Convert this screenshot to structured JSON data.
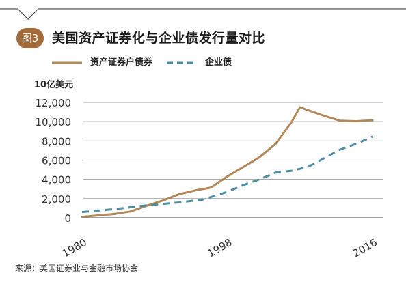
{
  "figure": {
    "badge": "图3",
    "title": "美国资产证券化与企业债发行量对比",
    "source": "来源：美国证券业与金融市场协会"
  },
  "colors": {
    "brown": "#b38858",
    "blue": "#4b8da2",
    "badge": "#a36a3a"
  },
  "chart_data": {
    "type": "line",
    "title": "美国资产证券化与企业债发行量对比",
    "ylabel": "10亿美元",
    "xlabel": "",
    "xlim": [
      1980,
      2016
    ],
    "ylim": [
      0,
      12000
    ],
    "yticks": [
      0,
      2000,
      4000,
      6000,
      8000,
      10000,
      12000
    ],
    "ytick_labels": [
      "0",
      "2,000",
      "4,000",
      "6,000",
      "8,000",
      "10,000",
      "12,000"
    ],
    "xticks": [
      1980,
      1998,
      2016
    ],
    "xtick_labels": [
      "1980",
      "1998",
      "2016"
    ],
    "grid": "horizontal",
    "legend_position": "top-left",
    "series": [
      {
        "name": "资产证券户债券",
        "style": "solid",
        "color": "#b38858",
        "x": [
          1980,
          1982,
          1984,
          1986,
          1988,
          1990,
          1992,
          1994,
          1996,
          1998,
          2000,
          2002,
          2004,
          2006,
          2007,
          2008,
          2010,
          2012,
          2014,
          2016
        ],
        "y": [
          100,
          250,
          400,
          650,
          1250,
          1800,
          2450,
          2850,
          3150,
          4300,
          5300,
          6300,
          7700,
          10000,
          11500,
          11200,
          10600,
          10100,
          10050,
          10150
        ]
      },
      {
        "name": "企业债",
        "style": "dashed",
        "color": "#4b8da2",
        "x": [
          1980,
          1984,
          1988,
          1992,
          1995,
          1998,
          2000,
          2002,
          2004,
          2006,
          2008,
          2010,
          2012,
          2014,
          2016
        ],
        "y": [
          600,
          900,
          1300,
          1600,
          1900,
          2700,
          3400,
          4000,
          4700,
          4900,
          5300,
          6200,
          7100,
          7700,
          8450
        ]
      }
    ]
  }
}
